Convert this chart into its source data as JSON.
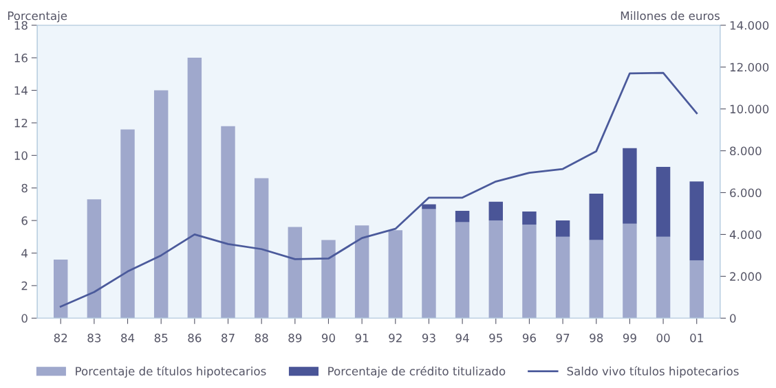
{
  "chart_data": {
    "type": "bar",
    "stacked": true,
    "ylabel": "Porcentaje",
    "y2label": "Millones de euros",
    "categories": [
      "82",
      "83",
      "84",
      "85",
      "86",
      "87",
      "88",
      "89",
      "90",
      "91",
      "92",
      "93",
      "94",
      "95",
      "96",
      "97",
      "98",
      "99",
      "00",
      "01"
    ],
    "series": [
      {
        "name": "Porcentaje de títulos hipotecarios",
        "color": "#9fa8cc",
        "values": [
          3.6,
          7.3,
          11.6,
          14.0,
          16.0,
          11.8,
          8.6,
          5.6,
          4.8,
          5.7,
          5.4,
          6.7,
          5.9,
          6.0,
          5.75,
          5.0,
          4.8,
          5.8,
          5.0,
          3.55
        ]
      },
      {
        "name": "Porcentaje de crédito titulizado",
        "color": "#4a5597",
        "values": [
          null,
          null,
          null,
          null,
          null,
          null,
          null,
          null,
          null,
          null,
          null,
          0.3,
          0.7,
          1.15,
          0.8,
          1.0,
          2.85,
          4.65,
          4.3,
          4.85
        ]
      },
      {
        "name": "Saldo vivo títulos hipotecarios",
        "color": "#4b5a9b",
        "type": "line",
        "axis": "y2",
        "values": [
          550,
          1250,
          2230,
          3000,
          4000,
          3540,
          3300,
          2820,
          2850,
          3830,
          4270,
          5760,
          5760,
          6530,
          6950,
          7130,
          7980,
          11700,
          11720,
          9800
        ]
      }
    ],
    "ylim": [
      0,
      18
    ],
    "yticks": [
      0,
      2,
      4,
      6,
      8,
      10,
      12,
      14,
      16,
      18
    ],
    "y2lim": [
      0,
      14000
    ],
    "y2ticks": [
      {
        "value": 0,
        "label": "0"
      },
      {
        "value": 2000,
        "label": "2.000"
      },
      {
        "value": 4000,
        "label": "4.000"
      },
      {
        "value": 6000,
        "label": "6.000"
      },
      {
        "value": 8000,
        "label": "8.000"
      },
      {
        "value": 10000,
        "label": "10.000"
      },
      {
        "value": 12000,
        "label": "12.000"
      },
      {
        "value": 14000,
        "label": "14.000"
      }
    ],
    "legend": "bottom",
    "marker": "none",
    "line_style": "solid"
  }
}
